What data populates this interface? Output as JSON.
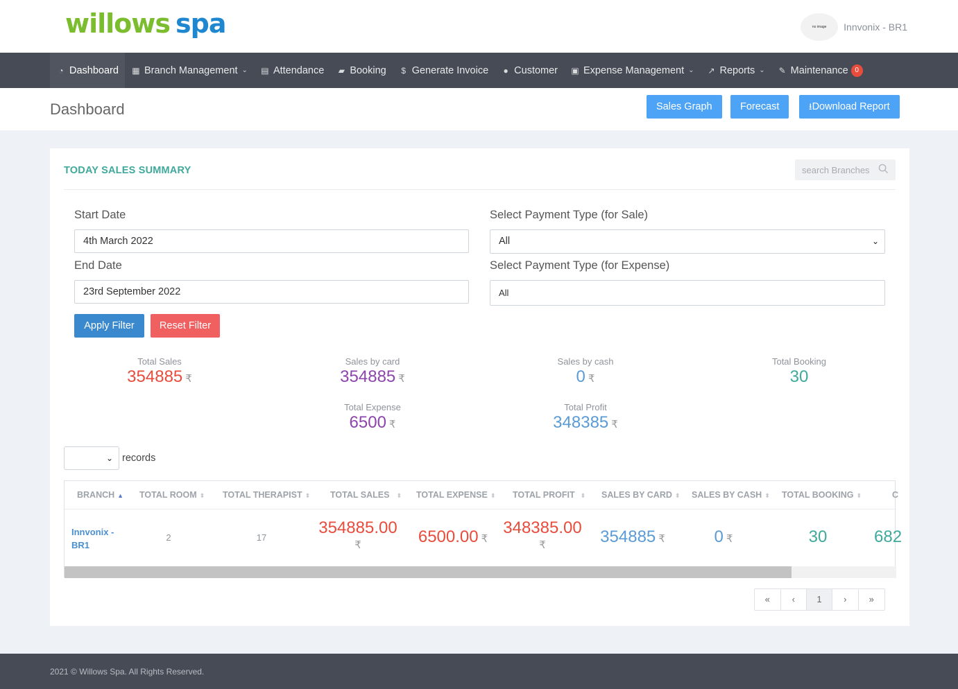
{
  "brand": {
    "part1": "willows",
    "part2": "spa"
  },
  "user": {
    "avatar_text": "no image",
    "name": "Innvonix - BR1"
  },
  "nav": {
    "dashboard": "Dashboard",
    "branch_management": "Branch Management",
    "attendance": "Attendance",
    "booking": "Booking",
    "generate_invoice": "Generate Invoice",
    "customer": "Customer",
    "expense_management": "Expense Management",
    "reports": "Reports",
    "maintenance": "Maintenance",
    "maintenance_badge": "0"
  },
  "page": {
    "title": "Dashboard",
    "sales_graph": "Sales Graph",
    "forecast": "Forecast",
    "download_report": "Download Report"
  },
  "summary": {
    "title": "TODAY SALES SUMMARY",
    "search_placeholder": "search Branches",
    "start_date_label": "Start Date",
    "start_date_value": "4th March 2022",
    "end_date_label": "End Date",
    "end_date_value": "23rd September 2022",
    "payment_sale_label": "Select Payment Type (for Sale)",
    "payment_sale_value": "All",
    "payment_expense_label": "Select Payment Type (for Expense)",
    "payment_expense_value": "All",
    "apply_filter": "Apply Filter",
    "reset_filter": "Reset Filter"
  },
  "stats": {
    "currency": "₹",
    "total_sales_label": "Total Sales",
    "total_sales": "354885",
    "sales_card_label": "Sales by card",
    "sales_card": "354885",
    "sales_cash_label": "Sales by cash",
    "sales_cash": "0",
    "total_booking_label": "Total Booking",
    "total_booking": "30",
    "total_expense_label": "Total Expense",
    "total_expense": "6500",
    "total_profit_label": "Total Profit",
    "total_profit": "348385"
  },
  "records_label": "records",
  "table": {
    "headers": [
      "BRANCH",
      "TOTAL ROOM",
      "TOTAL THERAPIST",
      "TOTAL SALES",
      "TOTAL EXPENSE",
      "TOTAL PROFIT",
      "SALES BY CARD",
      "SALES BY CASH",
      "TOTAL BOOKING",
      "C"
    ],
    "row": {
      "branch": "Innvonix - BR1",
      "total_room": "2",
      "total_therapist": "17",
      "total_sales": "354885.00",
      "total_expense": "6500.00",
      "total_profit": "348385.00",
      "sales_by_card": "354885",
      "sales_by_cash": "0",
      "total_booking": "30",
      "cut_value": "682"
    }
  },
  "pager": {
    "first": "«",
    "prev": "‹",
    "current": "1",
    "next": "›",
    "last": "»"
  },
  "footer": "2021 © Willows Spa. All Rights Reserved.",
  "colors": {
    "red": "#e74c3c",
    "purple": "#8e44ad",
    "blue": "#5b9bd5",
    "teal": "#3fa99b"
  }
}
